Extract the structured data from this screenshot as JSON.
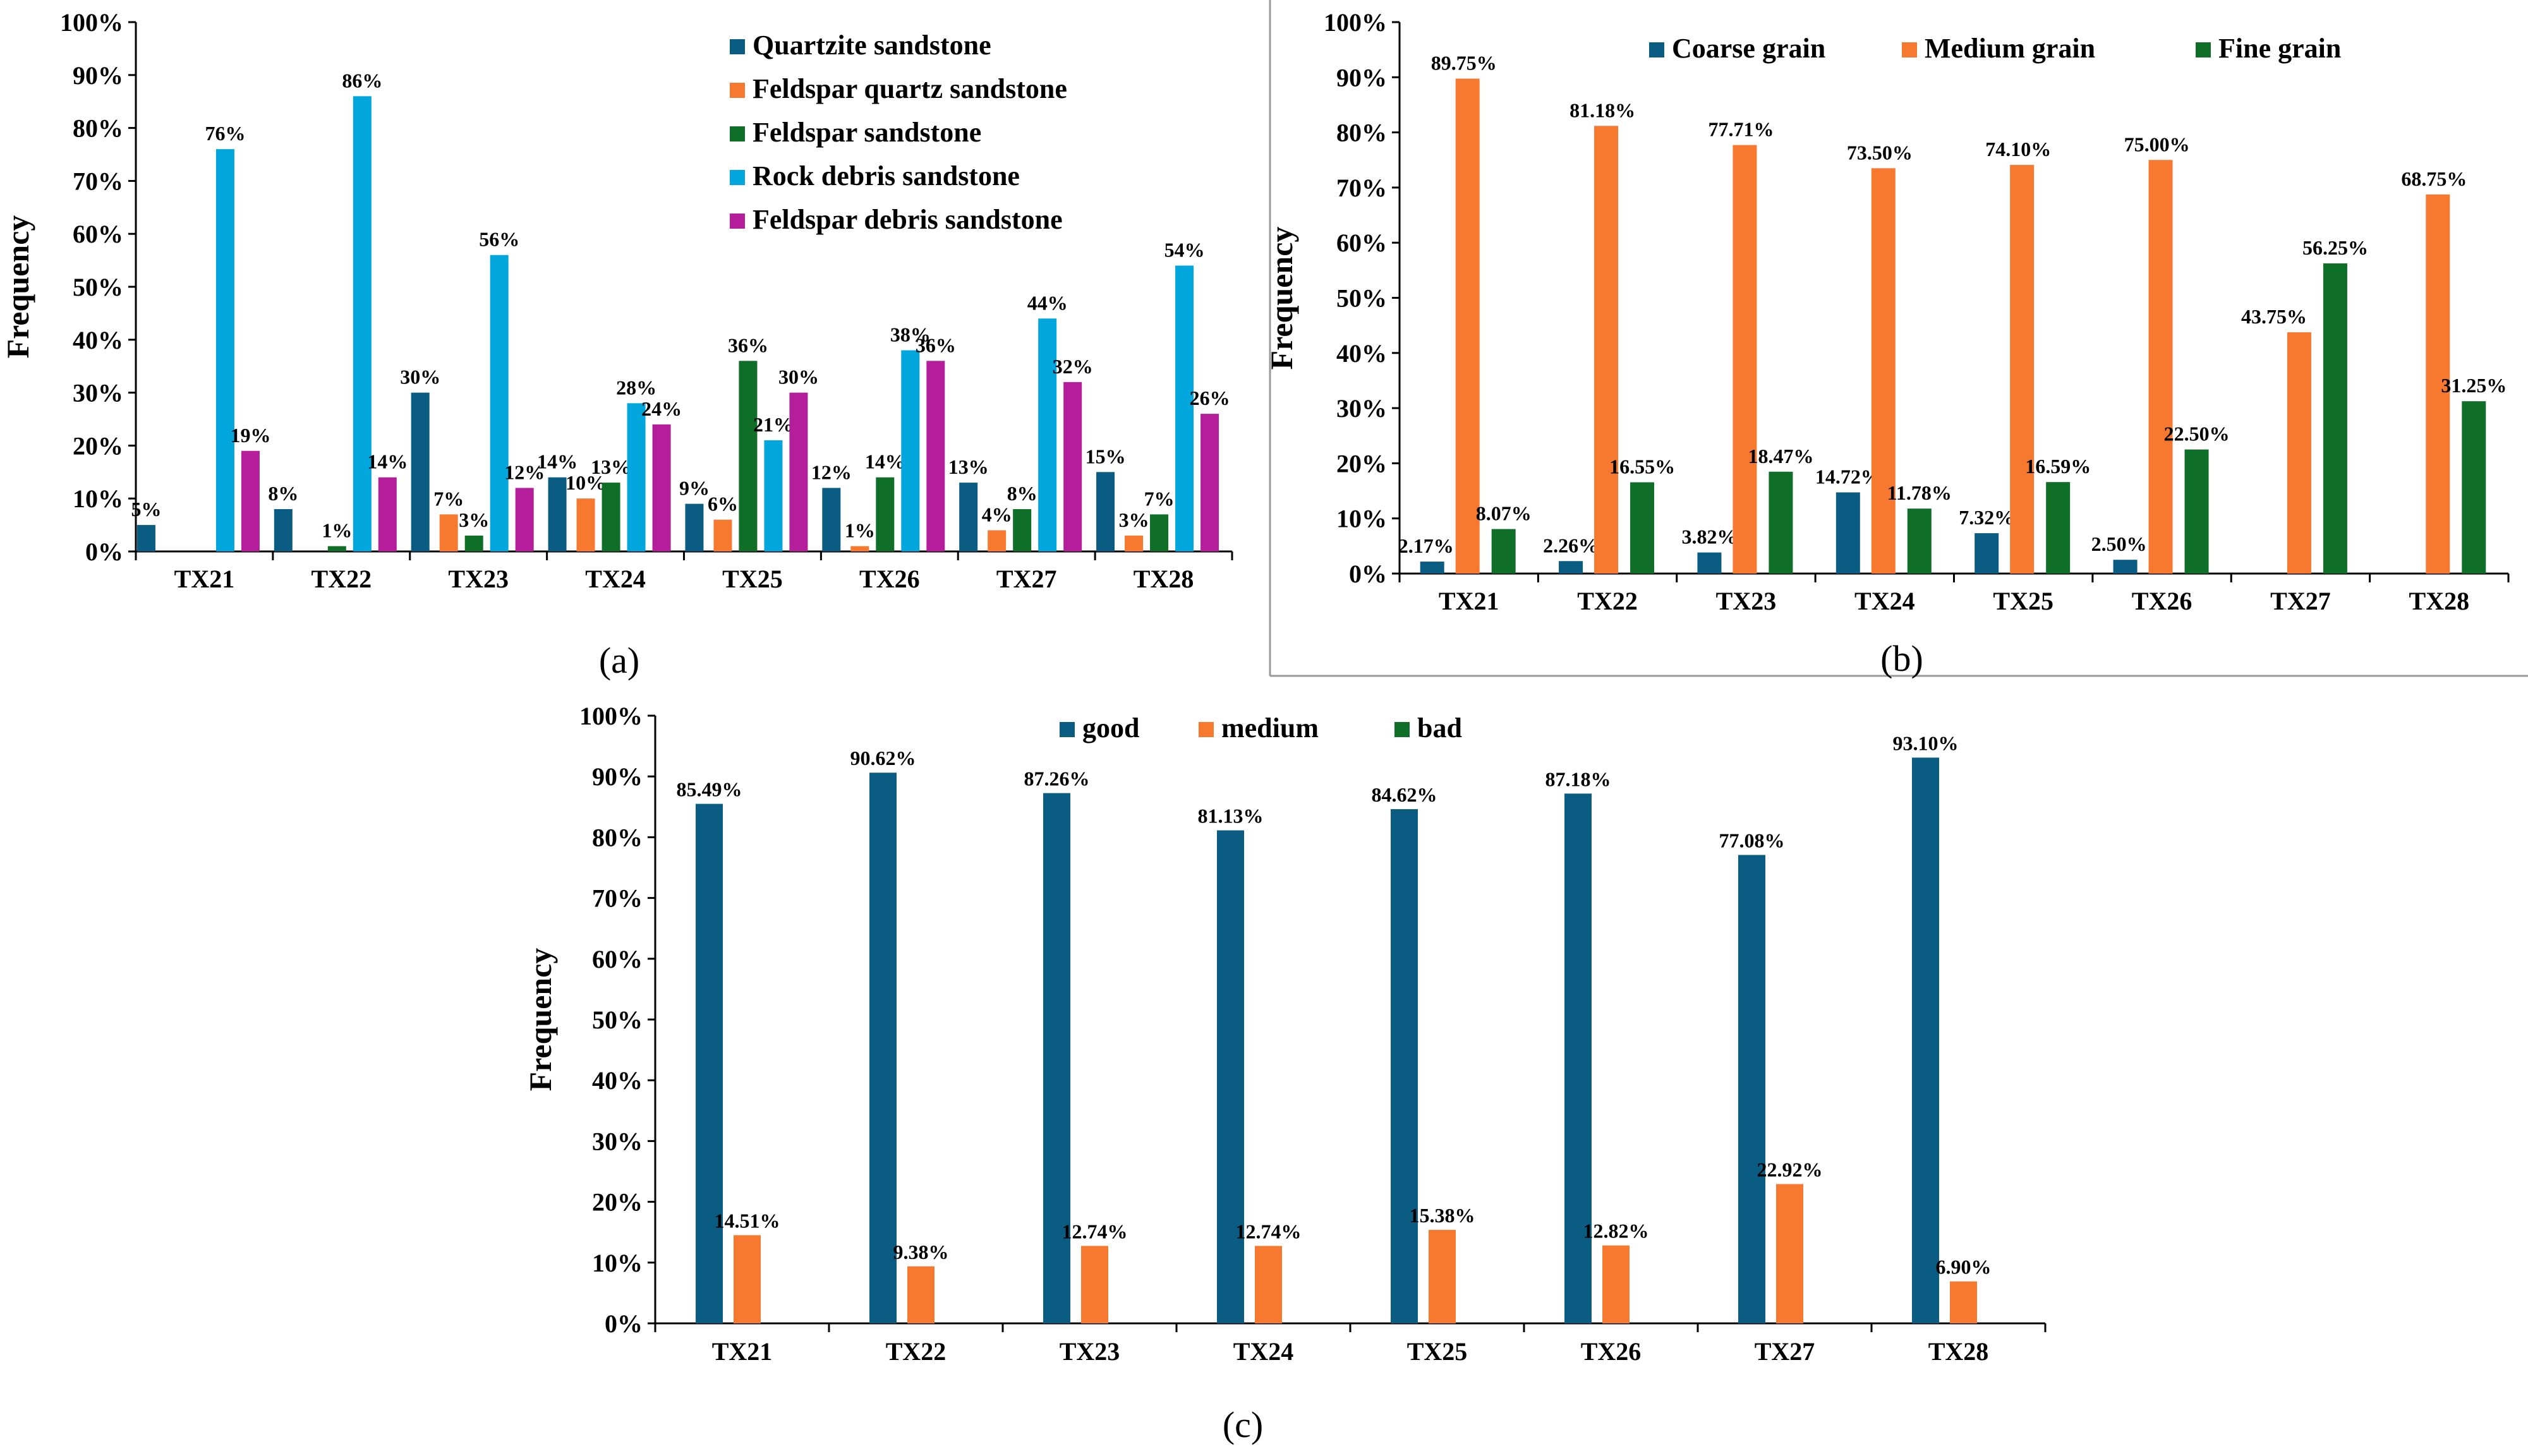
{
  "figure": {
    "panels": [
      {
        "id": "a",
        "label": "(a)"
      },
      {
        "id": "b",
        "label": "(b)"
      },
      {
        "id": "c",
        "label": "(c)"
      }
    ]
  },
  "colors": {
    "navy": "#0A5C82",
    "orange": "#F7782F",
    "green": "#0F6E28",
    "sky": "#00A6DC",
    "magenta": "#B41E9B"
  },
  "chart_data": [
    {
      "id": "a",
      "type": "bar",
      "panel_label": "(a)",
      "title": "",
      "xlabel": "",
      "ylabel": "Frequency",
      "ylim": [
        0,
        100
      ],
      "yticks": [
        "0%",
        "10%",
        "20%",
        "30%",
        "40%",
        "50%",
        "60%",
        "70%",
        "80%",
        "90%",
        "100%"
      ],
      "legend_position": "top-right",
      "categories": [
        "TX21",
        "TX22",
        "TX23",
        "TX24",
        "TX25",
        "TX26",
        "TX27",
        "TX28"
      ],
      "series": [
        {
          "name": "Quartzite sandstone",
          "color": "#0A5C82",
          "values": [
            5,
            8,
            30,
            14,
            9,
            12,
            13,
            15
          ],
          "labels": [
            "5%",
            "8%",
            "30%",
            "14%",
            "9%",
            "12%",
            "13%",
            "15%"
          ]
        },
        {
          "name": "Feldspar quartz sandstone",
          "color": "#F7782F",
          "values": [
            0,
            0,
            7,
            10,
            6,
            1,
            4,
            3
          ],
          "labels": [
            "",
            "",
            "7%",
            "10%",
            "6%",
            "1%",
            "4%",
            "3%"
          ]
        },
        {
          "name": "Feldspar sandstone",
          "color": "#0F6E28",
          "values": [
            0,
            1,
            3,
            13,
            36,
            14,
            8,
            7
          ],
          "labels": [
            "",
            "1%",
            "3%",
            "13%",
            "36%",
            "14%",
            "8%",
            "7%"
          ]
        },
        {
          "name": "Rock debris sandstone",
          "color": "#00A6DC",
          "values": [
            76,
            86,
            56,
            28,
            21,
            38,
            44,
            54
          ],
          "labels": [
            "76%",
            "86%",
            "56%",
            "28%",
            "21%",
            "38%",
            "44%",
            "54%"
          ]
        },
        {
          "name": "Feldspar debris sandstone",
          "color": "#B41E9B",
          "values": [
            19,
            14,
            12,
            24,
            30,
            36,
            32,
            26
          ],
          "labels": [
            "19%",
            "14%",
            "12%",
            "24%",
            "30%",
            "36%",
            "32%",
            "26%"
          ]
        }
      ]
    },
    {
      "id": "b",
      "type": "bar",
      "panel_label": "(b)",
      "title": "",
      "xlabel": "",
      "ylabel": "Frequency",
      "ylim": [
        0,
        100
      ],
      "yticks": [
        "0%",
        "10%",
        "20%",
        "30%",
        "40%",
        "50%",
        "60%",
        "70%",
        "80%",
        "90%",
        "100%"
      ],
      "legend_position": "top",
      "categories": [
        "TX21",
        "TX22",
        "TX23",
        "TX24",
        "TX25",
        "TX26",
        "TX27",
        "TX28"
      ],
      "series": [
        {
          "name": "Coarse grain",
          "color": "#0A5C82",
          "values": [
            2.17,
            2.26,
            3.82,
            14.72,
            7.32,
            2.5,
            0,
            0
          ],
          "labels": [
            "2.17%",
            "2.26%",
            "3.82%",
            "14.72%",
            "7.32%",
            "2.50%",
            "",
            ""
          ]
        },
        {
          "name": "Medium  grain",
          "color": "#F7782F",
          "values": [
            89.75,
            81.18,
            77.71,
            73.5,
            74.1,
            75.0,
            43.75,
            68.75
          ],
          "labels": [
            "89.75%",
            "81.18%",
            "77.71%",
            "73.50%",
            "74.10%",
            "75.00%",
            "43.75%",
            "68.75%"
          ]
        },
        {
          "name": "Fine grain",
          "color": "#0F6E28",
          "values": [
            8.07,
            16.55,
            18.47,
            11.78,
            16.59,
            22.5,
            56.25,
            31.25
          ],
          "labels": [
            "8.07%",
            "16.55%",
            "18.47%",
            "11.78%",
            "16.59%",
            "22.50%",
            "56.25%",
            "31.25%"
          ]
        }
      ]
    },
    {
      "id": "c",
      "type": "bar",
      "panel_label": "(c)",
      "title": "",
      "xlabel": "",
      "ylabel": "Frequency",
      "ylim": [
        0,
        100
      ],
      "yticks": [
        "0%",
        "10%",
        "20%",
        "30%",
        "40%",
        "50%",
        "60%",
        "70%",
        "80%",
        "90%",
        "100%"
      ],
      "legend_position": "top",
      "categories": [
        "TX21",
        "TX22",
        "TX23",
        "TX24",
        "TX25",
        "TX26",
        "TX27",
        "TX28"
      ],
      "series": [
        {
          "name": "good",
          "color": "#0A5C82",
          "values": [
            85.49,
            90.62,
            87.26,
            81.13,
            84.62,
            87.18,
            77.08,
            93.1
          ],
          "labels": [
            "85.49%",
            "90.62%",
            "87.26%",
            "81.13%",
            "84.62%",
            "87.18%",
            "77.08%",
            "93.10%"
          ]
        },
        {
          "name": "medium",
          "color": "#F7782F",
          "values": [
            14.51,
            9.38,
            12.74,
            12.74,
            15.38,
            12.82,
            22.92,
            6.9
          ],
          "labels": [
            "14.51%",
            "9.38%",
            "12.74%",
            "12.74%",
            "15.38%",
            "12.82%",
            "22.92%",
            "6.90%"
          ]
        },
        {
          "name": "bad",
          "color": "#0F6E28",
          "values": [
            0,
            0,
            0,
            0,
            0,
            0,
            0,
            0
          ],
          "labels": [
            "",
            "",
            "",
            "",
            "",
            "",
            "",
            ""
          ]
        }
      ]
    }
  ]
}
